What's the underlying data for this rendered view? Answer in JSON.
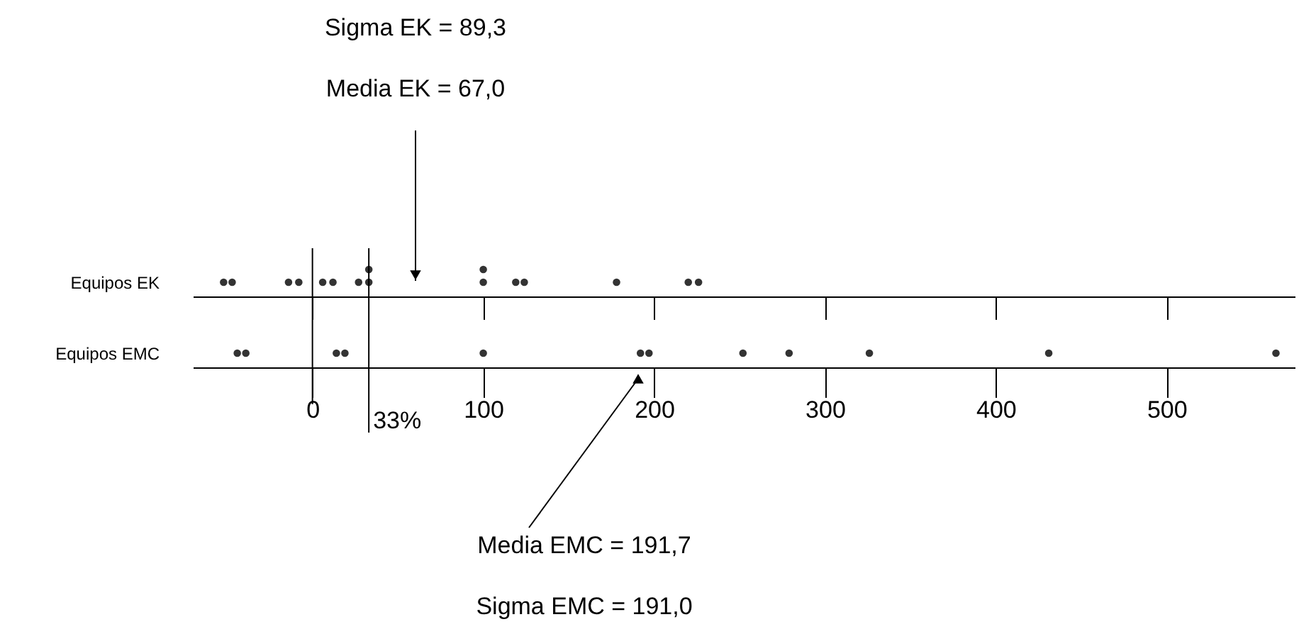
{
  "chart_data": {
    "type": "scatter",
    "orientation": "horizontal",
    "marker": "circle",
    "categories": [
      "Equipos EK",
      "Equipos EMC"
    ],
    "xlim": [
      -70,
      575
    ],
    "xticks": [
      0,
      100,
      200,
      300,
      400,
      500
    ],
    "series": [
      {
        "color": "#333333",
        "x": [
          "Equipos EK",
          "Equipos EK",
          "Equipos EK",
          "Equipos EK",
          "Equipos EK",
          "Equipos EK",
          "Equipos EK",
          "Equipos EK",
          "Equipos EK",
          "Equipos EK",
          "Equipos EK",
          "Equipos EK",
          "Equipos EK",
          "Equipos EK",
          "Equipos EK",
          "Equipos EK",
          "Equipos EMC",
          "Equipos EMC",
          "Equipos EMC",
          "Equipos EMC",
          "Equipos EMC",
          "Equipos EMC",
          "Equipos EMC",
          "Equipos EMC",
          "Equipos EMC",
          "Equipos EMC",
          "Equipos EMC",
          "Equipos EMC"
        ],
        "values": [
          -52,
          -47,
          -14,
          -8,
          6,
          12,
          27,
          33,
          33,
          100,
          100,
          119,
          124,
          178,
          220,
          226,
          -44,
          -39,
          14,
          19,
          100,
          192,
          197,
          252,
          279,
          326,
          431,
          564
        ]
      }
    ],
    "ref_lines": [
      {
        "axis": "x",
        "value": 0
      },
      {
        "axis": "x",
        "value": 33,
        "label": "33%"
      }
    ],
    "annotations": [
      "Sigma EK = 89,3",
      "Media EK = 67,0",
      "Media EMC = 191,7",
      "Sigma EMC = 191,0"
    ]
  }
}
